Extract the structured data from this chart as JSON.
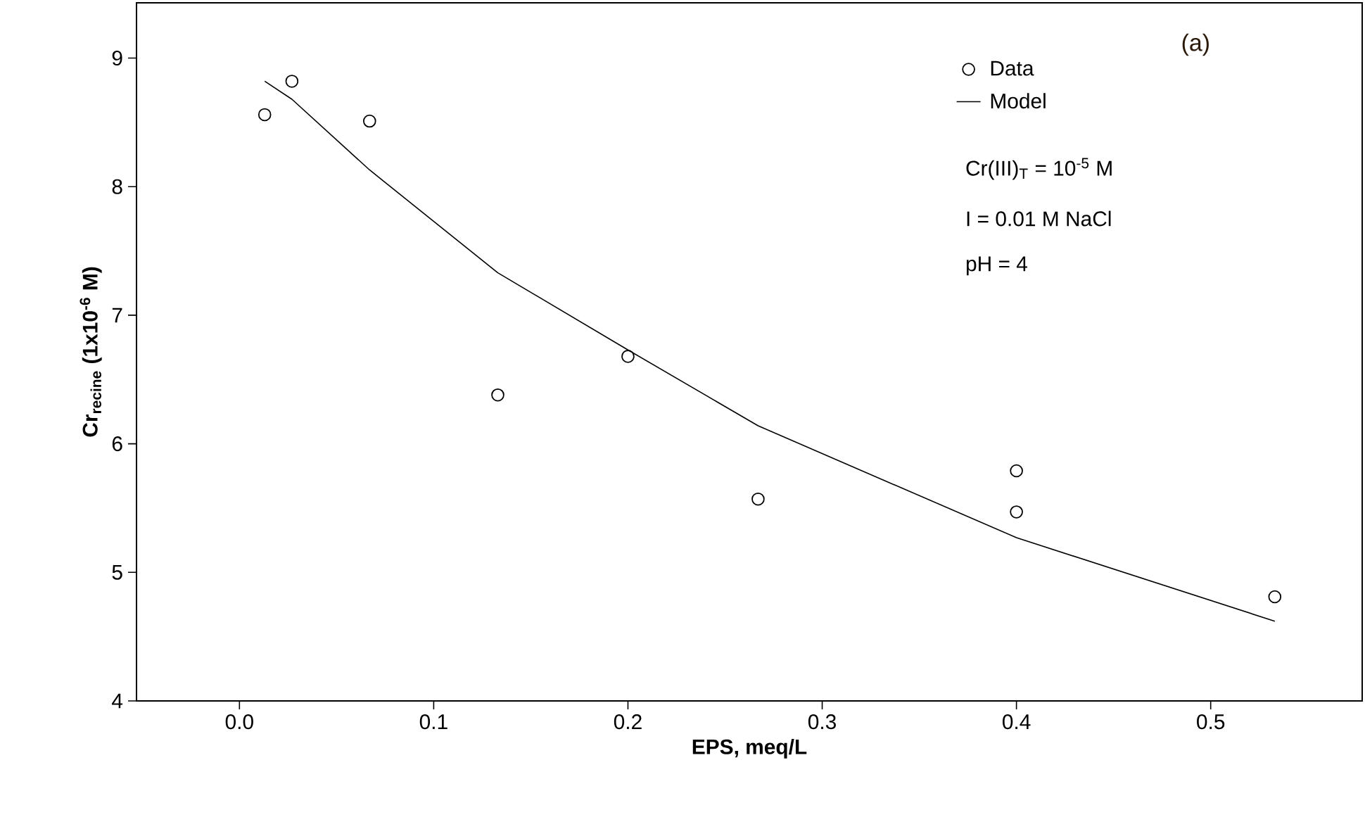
{
  "chart_data": {
    "type": "scatter",
    "xlabel": "EPS, meq/L",
    "ylabel": "Cr$_{recine}$ (1x10$^{-6}$ M)",
    "xlim": [
      -0.053,
      0.578
    ],
    "ylim": [
      4,
      9.43
    ],
    "xticks": [
      {
        "value": 0,
        "label": "0.0"
      },
      0.1,
      0.2,
      0.3,
      0.4,
      0.5
    ],
    "yticks": [
      4,
      5,
      6,
      7,
      8,
      9
    ],
    "legend": "top right",
    "grid": false,
    "series": [
      {
        "name": "Data",
        "type": "scatter",
        "marker": "circle",
        "color": "#000000",
        "x": [
          0.013,
          0.027,
          0.067,
          0.133,
          0.2,
          0.267,
          0.4,
          0.4,
          0.533
        ],
        "values": [
          8.56,
          8.82,
          8.51,
          6.38,
          6.68,
          5.57,
          5.79,
          5.47,
          4.81
        ]
      },
      {
        "name": "Model",
        "type": "line",
        "line_style": "solid",
        "color": "#000000",
        "x": [
          0.013,
          0.027,
          0.067,
          0.133,
          0.2,
          0.267,
          0.4,
          0.533
        ],
        "values": [
          8.82,
          8.68,
          8.13,
          7.33,
          6.73,
          6.14,
          5.27,
          4.62
        ]
      }
    ],
    "annotations": [
      "(a)",
      "Cr(III)$_{T}$ = 10$^{-5}$ M",
      "I = 0.01 M NaCl",
      "pH = 4"
    ]
  }
}
